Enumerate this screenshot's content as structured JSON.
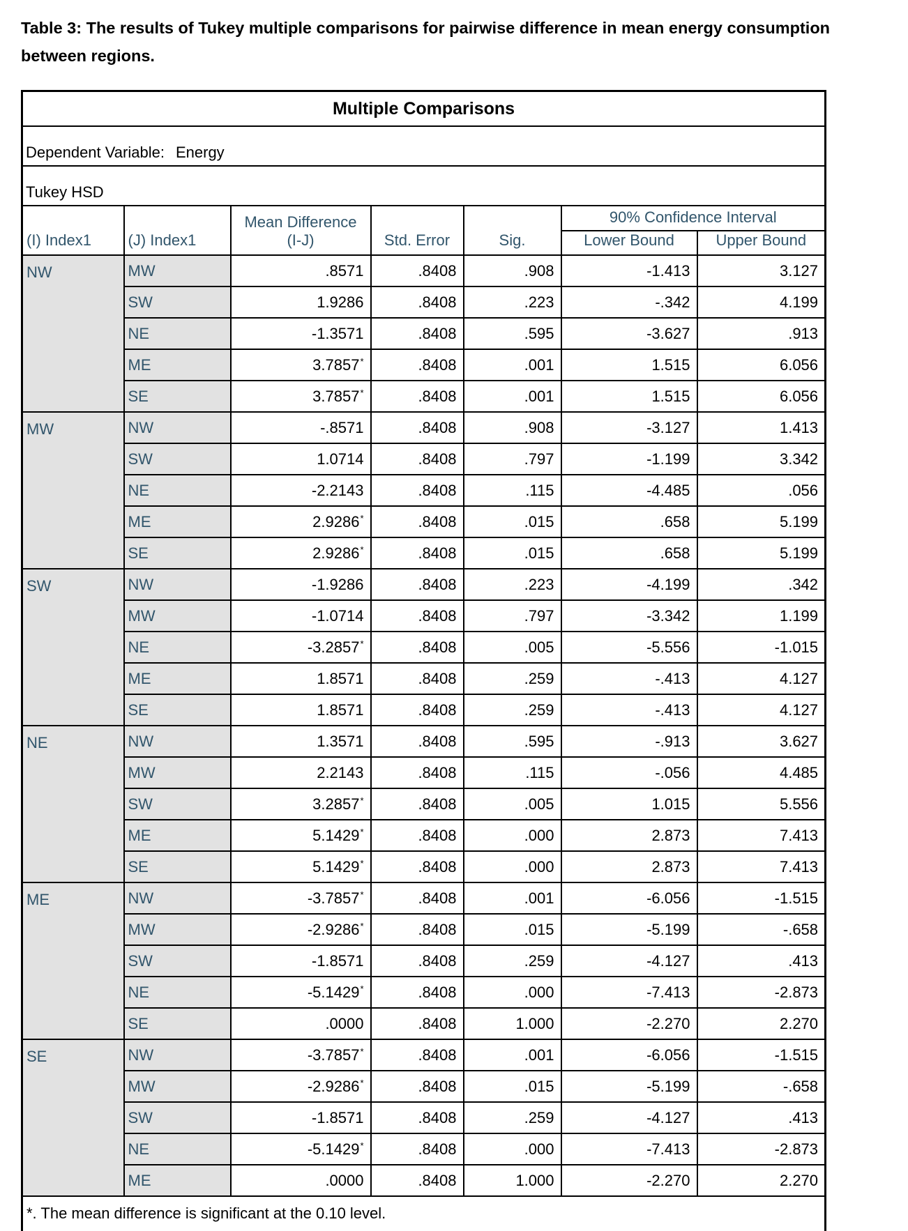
{
  "page": {
    "title": "Table 3: The results of Tukey multiple comparisons for pairwise difference in mean energy consumption between regions."
  },
  "table": {
    "title": "Multiple Comparisons",
    "dependent_variable_label": "Dependent Variable:",
    "dependent_variable_value": "Energy",
    "method": "Tukey HSD",
    "headers": {
      "i": "(I) Index1",
      "j": "(J) Index1",
      "mean_difference_line1": "Mean Difference",
      "mean_difference_line2": "(I-J)",
      "std_error": "Std. Error",
      "sig": "Sig.",
      "ci": "90% Confidence Interval",
      "lower": "Lower Bound",
      "upper": "Upper Bound"
    },
    "footnote": "*. The mean difference is significant at the 0.10 level.",
    "groups": [
      {
        "i": "NW",
        "rows": [
          {
            "j": "MW",
            "md": ".8571",
            "star": "",
            "se": ".8408",
            "sig": ".908",
            "lower": "-1.413",
            "upper": "3.127"
          },
          {
            "j": "SW",
            "md": "1.9286",
            "star": "",
            "se": ".8408",
            "sig": ".223",
            "lower": "-.342",
            "upper": "4.199"
          },
          {
            "j": "NE",
            "md": "-1.3571",
            "star": "",
            "se": ".8408",
            "sig": ".595",
            "lower": "-3.627",
            "upper": ".913"
          },
          {
            "j": "ME",
            "md": "3.7857",
            "star": "*",
            "se": ".8408",
            "sig": ".001",
            "lower": "1.515",
            "upper": "6.056"
          },
          {
            "j": "SE",
            "md": "3.7857",
            "star": "*",
            "se": ".8408",
            "sig": ".001",
            "lower": "1.515",
            "upper": "6.056"
          }
        ]
      },
      {
        "i": "MW",
        "rows": [
          {
            "j": "NW",
            "md": "-.8571",
            "star": "",
            "se": ".8408",
            "sig": ".908",
            "lower": "-3.127",
            "upper": "1.413"
          },
          {
            "j": "SW",
            "md": "1.0714",
            "star": "",
            "se": ".8408",
            "sig": ".797",
            "lower": "-1.199",
            "upper": "3.342"
          },
          {
            "j": "NE",
            "md": "-2.2143",
            "star": "",
            "se": ".8408",
            "sig": ".115",
            "lower": "-4.485",
            "upper": ".056"
          },
          {
            "j": "ME",
            "md": "2.9286",
            "star": "*",
            "se": ".8408",
            "sig": ".015",
            "lower": ".658",
            "upper": "5.199"
          },
          {
            "j": "SE",
            "md": "2.9286",
            "star": "*",
            "se": ".8408",
            "sig": ".015",
            "lower": ".658",
            "upper": "5.199"
          }
        ]
      },
      {
        "i": "SW",
        "rows": [
          {
            "j": "NW",
            "md": "-1.9286",
            "star": "",
            "se": ".8408",
            "sig": ".223",
            "lower": "-4.199",
            "upper": ".342"
          },
          {
            "j": "MW",
            "md": "-1.0714",
            "star": "",
            "se": ".8408",
            "sig": ".797",
            "lower": "-3.342",
            "upper": "1.199"
          },
          {
            "j": "NE",
            "md": "-3.2857",
            "star": "*",
            "se": ".8408",
            "sig": ".005",
            "lower": "-5.556",
            "upper": "-1.015"
          },
          {
            "j": "ME",
            "md": "1.8571",
            "star": "",
            "se": ".8408",
            "sig": ".259",
            "lower": "-.413",
            "upper": "4.127"
          },
          {
            "j": "SE",
            "md": "1.8571",
            "star": "",
            "se": ".8408",
            "sig": ".259",
            "lower": "-.413",
            "upper": "4.127"
          }
        ]
      },
      {
        "i": "NE",
        "rows": [
          {
            "j": "NW",
            "md": "1.3571",
            "star": "",
            "se": ".8408",
            "sig": ".595",
            "lower": "-.913",
            "upper": "3.627"
          },
          {
            "j": "MW",
            "md": "2.2143",
            "star": "",
            "se": ".8408",
            "sig": ".115",
            "lower": "-.056",
            "upper": "4.485"
          },
          {
            "j": "SW",
            "md": "3.2857",
            "star": "*",
            "se": ".8408",
            "sig": ".005",
            "lower": "1.015",
            "upper": "5.556"
          },
          {
            "j": "ME",
            "md": "5.1429",
            "star": "*",
            "se": ".8408",
            "sig": ".000",
            "lower": "2.873",
            "upper": "7.413"
          },
          {
            "j": "SE",
            "md": "5.1429",
            "star": "*",
            "se": ".8408",
            "sig": ".000",
            "lower": "2.873",
            "upper": "7.413"
          }
        ]
      },
      {
        "i": "ME",
        "rows": [
          {
            "j": "NW",
            "md": "-3.7857",
            "star": "*",
            "se": ".8408",
            "sig": ".001",
            "lower": "-6.056",
            "upper": "-1.515"
          },
          {
            "j": "MW",
            "md": "-2.9286",
            "star": "*",
            "se": ".8408",
            "sig": ".015",
            "lower": "-5.199",
            "upper": "-.658"
          },
          {
            "j": "SW",
            "md": "-1.8571",
            "star": "",
            "se": ".8408",
            "sig": ".259",
            "lower": "-4.127",
            "upper": ".413"
          },
          {
            "j": "NE",
            "md": "-5.1429",
            "star": "*",
            "se": ".8408",
            "sig": ".000",
            "lower": "-7.413",
            "upper": "-2.873"
          },
          {
            "j": "SE",
            "md": ".0000",
            "star": "",
            "se": ".8408",
            "sig": "1.000",
            "lower": "-2.270",
            "upper": "2.270"
          }
        ]
      },
      {
        "i": "SE",
        "rows": [
          {
            "j": "NW",
            "md": "-3.7857",
            "star": "*",
            "se": ".8408",
            "sig": ".001",
            "lower": "-6.056",
            "upper": "-1.515"
          },
          {
            "j": "MW",
            "md": "-2.9286",
            "star": "*",
            "se": ".8408",
            "sig": ".015",
            "lower": "-5.199",
            "upper": "-.658"
          },
          {
            "j": "SW",
            "md": "-1.8571",
            "star": "",
            "se": ".8408",
            "sig": ".259",
            "lower": "-4.127",
            "upper": ".413"
          },
          {
            "j": "NE",
            "md": "-5.1429",
            "star": "*",
            "se": ".8408",
            "sig": ".000",
            "lower": "-7.413",
            "upper": "-2.873"
          },
          {
            "j": "ME",
            "md": ".0000",
            "star": "",
            "se": ".8408",
            "sig": "1.000",
            "lower": "-2.270",
            "upper": "2.270"
          }
        ]
      }
    ]
  },
  "colors": {
    "label_text": "#31556B",
    "cell_shade": "#E2E2E2",
    "grid": "#000000"
  }
}
